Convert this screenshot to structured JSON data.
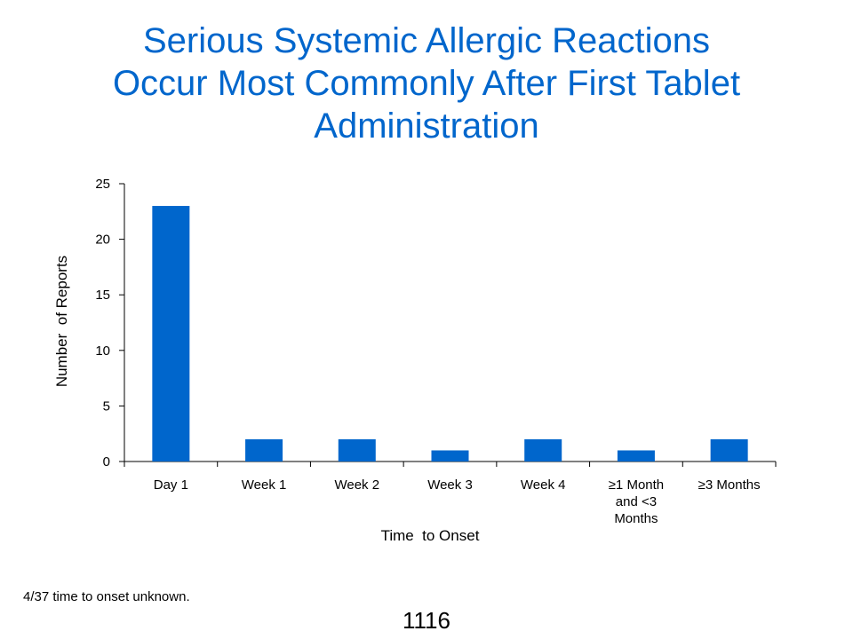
{
  "title_lines": [
    "Serious Systemic Allergic Reactions",
    "Occur Most Commonly After First Tablet",
    "Administration"
  ],
  "footnote": "4/37 time to onset unknown.",
  "slide_number": "1116",
  "colors": {
    "title": "#0066CC",
    "bar": "#0066CC",
    "axis": "#000000"
  },
  "chart_data": {
    "type": "bar",
    "title": "",
    "xlabel": "Time  to Onset",
    "ylabel": "Number  of Reports",
    "categories": [
      [
        "Day 1"
      ],
      [
        "Week 1"
      ],
      [
        "Week 2"
      ],
      [
        "Week 3"
      ],
      [
        "Week 4"
      ],
      [
        "≥1 Month",
        "and <3",
        "Months"
      ],
      [
        "≥3 Months"
      ]
    ],
    "values": [
      23,
      2,
      2,
      1,
      2,
      1,
      2
    ],
    "ylim": [
      0,
      25
    ],
    "yticks": [
      0,
      5,
      10,
      15,
      20,
      25
    ],
    "grid": false,
    "legend": "none"
  }
}
